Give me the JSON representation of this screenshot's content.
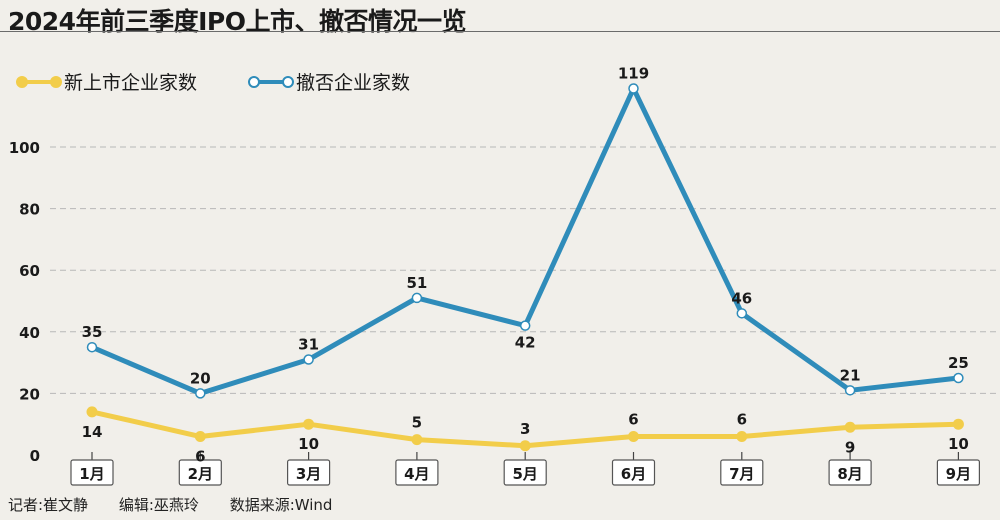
{
  "title": "2024年前三季度IPO上市、撤否情况一览",
  "footer": {
    "reporter": "记者:崔文静",
    "editor": "编辑:巫燕玲",
    "source": "数据来源:Wind"
  },
  "colors": {
    "new_listings": "#f2cd4a",
    "withdrawals": "#2f8cba",
    "background": "#f1efea",
    "grid": "#b8b8b8"
  },
  "chart_data": {
    "type": "line",
    "title": "2024年前三季度IPO上市、撤否情况一览",
    "categories": [
      "1月",
      "2月",
      "3月",
      "4月",
      "5月",
      "6月",
      "7月",
      "8月",
      "9月"
    ],
    "series": [
      {
        "name": "新上市企业家数",
        "values": [
          14,
          6,
          10,
          5,
          3,
          6,
          6,
          9,
          10
        ],
        "color": "#f2cd4a"
      },
      {
        "name": "撤否企业家数",
        "values": [
          35,
          20,
          31,
          51,
          42,
          119,
          46,
          21,
          25
        ],
        "color": "#2f8cba"
      }
    ],
    "yticks": [
      0,
      20,
      40,
      60,
      80,
      100
    ],
    "ylim": [
      0,
      125
    ],
    "grid": true,
    "legend_position": "top-left"
  }
}
